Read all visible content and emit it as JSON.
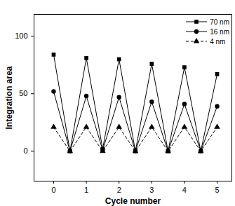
{
  "chart_data": {
    "type": "line",
    "x_label": "Cycle number",
    "y_label": "Integration area",
    "x": [
      0,
      0.5,
      1,
      1.5,
      2,
      2.5,
      3,
      3.5,
      4,
      4.5,
      5
    ],
    "series": [
      {
        "name": "70 nm",
        "color": "#000000",
        "marker": "square",
        "line_style": "solid",
        "values": [
          84,
          0,
          81,
          2,
          80,
          0,
          76,
          0,
          73,
          0,
          67
        ]
      },
      {
        "name": "16 nm",
        "color": "#000000",
        "marker": "circle",
        "line_style": "solid",
        "values": [
          52,
          0,
          48,
          1,
          47,
          0,
          43,
          0,
          41,
          0,
          39
        ]
      },
      {
        "name": "4 nm",
        "color": "#000000",
        "marker": "triangle",
        "line_style": "dashed",
        "values": [
          21,
          0,
          21,
          0,
          21,
          0,
          21,
          0,
          21,
          0,
          21
        ]
      }
    ],
    "xlim": [
      -0.6,
      5.45
    ],
    "xticks": [
      0,
      1,
      2,
      3,
      4,
      5
    ],
    "ylim": [
      -26,
      119
    ],
    "yticks": [
      0,
      50,
      100
    ],
    "legend": "top-right",
    "grid": false
  }
}
